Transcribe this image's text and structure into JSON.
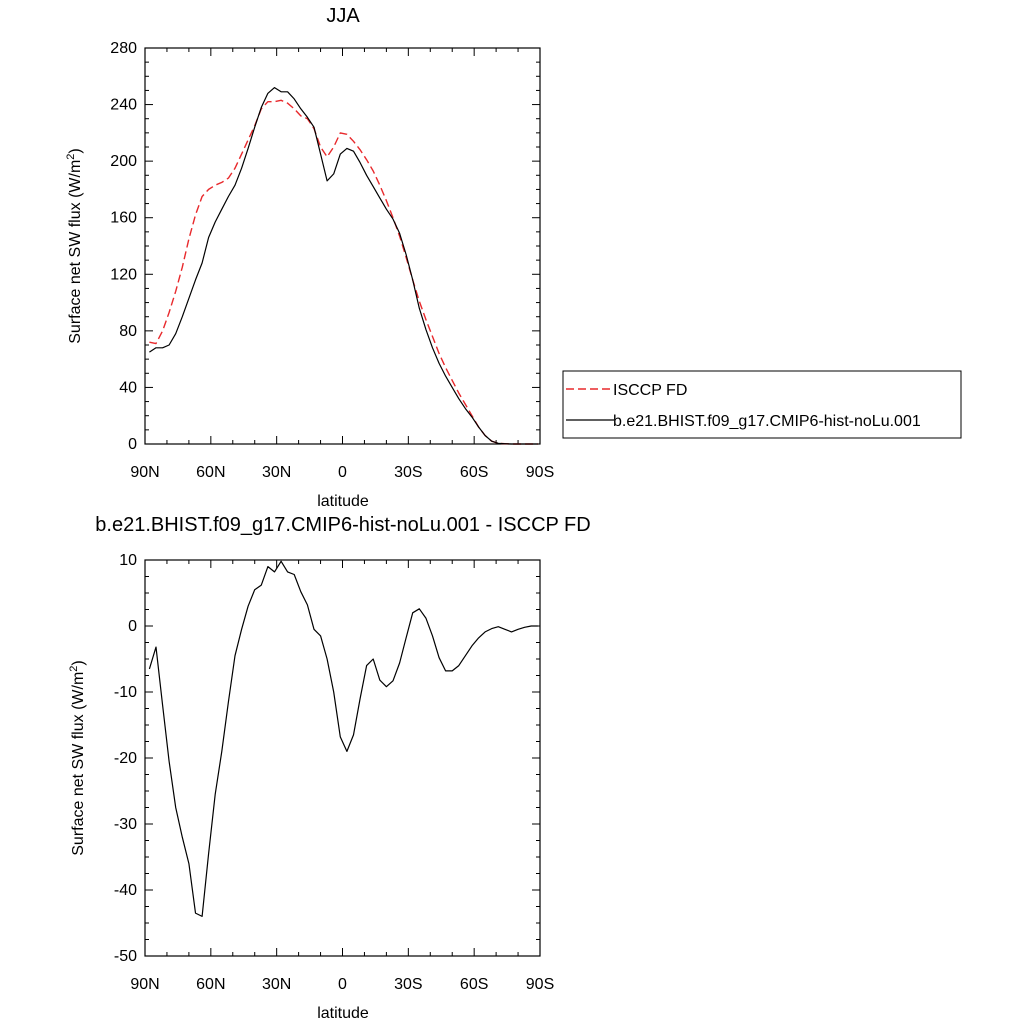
{
  "colors": {
    "observed": "#e8292c",
    "model": "#000000"
  },
  "chart_data": [
    {
      "type": "line",
      "title": "JJA",
      "xlabel": "latitude",
      "ylabel": "Surface net SW flux (W/m",
      "ylabel_sup": "2",
      "ylabel_end": ")",
      "xlim": [
        90,
        -90
      ],
      "ylim": [
        0,
        280
      ],
      "xticks": [
        90,
        60,
        30,
        0,
        -30,
        -60,
        -90
      ],
      "xtick_labels": [
        "90N",
        "60N",
        "30N",
        "0",
        "30S",
        "60S",
        "90S"
      ],
      "yticks": [
        0,
        40,
        80,
        120,
        160,
        200,
        240,
        280
      ],
      "ytick_labels": [
        "0",
        "40",
        "80",
        "120",
        "160",
        "200",
        "240",
        "280"
      ],
      "grid": false,
      "legend_position": "right",
      "series": [
        {
          "name": "ISCCP FD",
          "style": "dashed",
          "x": [
            88,
            85,
            82,
            79,
            76,
            73,
            70,
            67,
            64,
            61,
            58,
            55,
            52,
            49,
            46,
            43,
            40,
            37,
            34,
            31,
            28,
            25,
            22,
            19,
            16,
            13,
            10,
            7,
            4,
            1,
            -2,
            -5,
            -8,
            -11,
            -14,
            -17,
            -20,
            -23,
            -26,
            -29,
            -32,
            -35,
            -38,
            -41,
            -44,
            -47,
            -50,
            -53,
            -56,
            -59,
            -62,
            -65,
            -68,
            -71,
            -74,
            -77,
            -80,
            -83,
            -86,
            -89
          ],
          "y": [
            72,
            71,
            80,
            93,
            108,
            125,
            145,
            162,
            175,
            180,
            183,
            185,
            188,
            195,
            205,
            215,
            225,
            237,
            242,
            242,
            243,
            241,
            237,
            232,
            230,
            223,
            210,
            203,
            210,
            220,
            219,
            214,
            208,
            201,
            193,
            183,
            172,
            160,
            147,
            132,
            116,
            101,
            88,
            76,
            64,
            54,
            45,
            36,
            28,
            20,
            12,
            6,
            2,
            0.5,
            0.2,
            0,
            0,
            0,
            0,
            0
          ]
        },
        {
          "name": "b.e21.BHIST.f09_g17.CMIP6-hist-noLu.001",
          "style": "solid",
          "x": [
            88,
            85,
            82,
            79,
            76,
            73,
            70,
            67,
            64,
            61,
            58,
            55,
            52,
            49,
            46,
            43,
            40,
            37,
            34,
            31,
            28,
            25,
            22,
            19,
            16,
            13,
            10,
            7,
            4,
            1,
            -2,
            -5,
            -8,
            -11,
            -14,
            -17,
            -20,
            -23,
            -26,
            -29,
            -32,
            -35,
            -38,
            -41,
            -44,
            -47,
            -50,
            -53,
            -56,
            -59,
            -62,
            -65,
            -68,
            -71,
            -74,
            -77,
            -80,
            -83,
            -86,
            -89
          ],
          "y": [
            65,
            68,
            68,
            70,
            78,
            90,
            103,
            116,
            128,
            146,
            157,
            166,
            175,
            183,
            195,
            209,
            224,
            238,
            248,
            252,
            249,
            249,
            244,
            237,
            231,
            224,
            205,
            186,
            191,
            205,
            209,
            207,
            199,
            190,
            182,
            174,
            166,
            159,
            149,
            134,
            116,
            96,
            81,
            68,
            57,
            48,
            40,
            32,
            25,
            19,
            12,
            6,
            2,
            0.5,
            0.2,
            0,
            0,
            0,
            0,
            0
          ]
        }
      ]
    },
    {
      "type": "line",
      "title": "b.e21.BHIST.f09_g17.CMIP6-hist-noLu.001 - ISCCP FD",
      "xlabel": "latitude",
      "ylabel": "Surface net SW flux (W/m",
      "ylabel_sup": "2",
      "ylabel_end": ")",
      "xlim": [
        90,
        -90
      ],
      "ylim": [
        -50,
        10
      ],
      "xticks": [
        90,
        60,
        30,
        0,
        -30,
        -60,
        -90
      ],
      "xtick_labels": [
        "90N",
        "60N",
        "30N",
        "0",
        "30S",
        "60S",
        "90S"
      ],
      "yticks": [
        -50,
        -40,
        -30,
        -20,
        -10,
        0,
        10
      ],
      "ytick_labels": [
        "-50",
        "-40",
        "-30",
        "-20",
        "-10",
        "0",
        "10"
      ],
      "grid": false,
      "series": [
        {
          "style": "solid",
          "x": [
            88,
            85,
            82,
            79,
            76,
            73,
            70,
            67,
            64,
            61,
            58,
            55,
            52,
            49,
            46,
            43,
            40,
            37,
            34,
            31,
            28,
            25,
            22,
            19,
            16,
            13,
            10,
            7,
            4,
            1,
            -2,
            -5,
            -8,
            -11,
            -14,
            -17,
            -20,
            -23,
            -26,
            -29,
            -32,
            -35,
            -38,
            -41,
            -44,
            -47,
            -50,
            -53,
            -56,
            -59,
            -62,
            -65,
            -68,
            -71,
            -74,
            -77,
            -80,
            -83,
            -86,
            -89
          ],
          "y": [
            -6.5,
            -3.2,
            -12,
            -20.5,
            -27.5,
            -32,
            -36,
            -43.5,
            -44,
            -34.5,
            -25.5,
            -19,
            -11.5,
            -4.5,
            -0.5,
            3,
            5.5,
            6.2,
            9,
            8.2,
            9.8,
            8.2,
            7.8,
            5.2,
            3.2,
            -0.5,
            -1.5,
            -5,
            -10,
            -16.8,
            -19,
            -16.5,
            -11,
            -6,
            -5,
            -8.2,
            -9.2,
            -8.3,
            -5.6,
            -1.8,
            2,
            2.6,
            1.2,
            -1.5,
            -4.8,
            -6.8,
            -6.8,
            -6,
            -4.5,
            -3,
            -1.8,
            -0.9,
            -0.4,
            -0.1,
            -0.5,
            -0.9,
            -0.5,
            -0.2,
            0,
            0
          ]
        }
      ]
    }
  ]
}
